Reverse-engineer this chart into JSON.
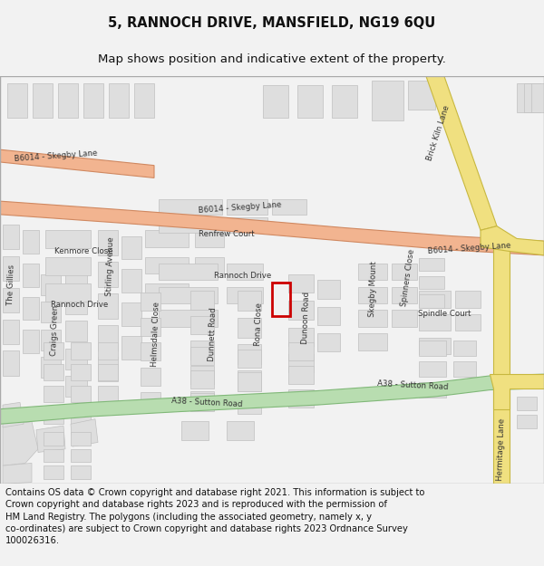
{
  "title": "5, RANNOCH DRIVE, MANSFIELD, NG19 6QU",
  "subtitle": "Map shows position and indicative extent of the property.",
  "footer": "Contains OS data © Crown copyright and database right 2021. This information is subject to\nCrown copyright and database rights 2023 and is reproduced with the permission of\nHM Land Registry. The polygons (including the associated geometry, namely x, y\nco-ordinates) are subject to Crown copyright and database rights 2023 Ordnance Survey\n100026316.",
  "bg_color": "#f2f2f2",
  "map_bg": "#ffffff",
  "building_color": "#dedede",
  "building_edge": "#c0c0c0",
  "road_main_color": "#f2b490",
  "road_main_edge": "#d08860",
  "road_a38_color": "#b8ddb0",
  "road_a38_edge": "#80b878",
  "road_yellow_color": "#f0e080",
  "road_yellow_edge": "#c8b840",
  "property_edge": "#cc0000",
  "title_fontsize": 10.5,
  "subtitle_fontsize": 9.5,
  "footer_fontsize": 7.2,
  "label_fontsize": 6.2
}
